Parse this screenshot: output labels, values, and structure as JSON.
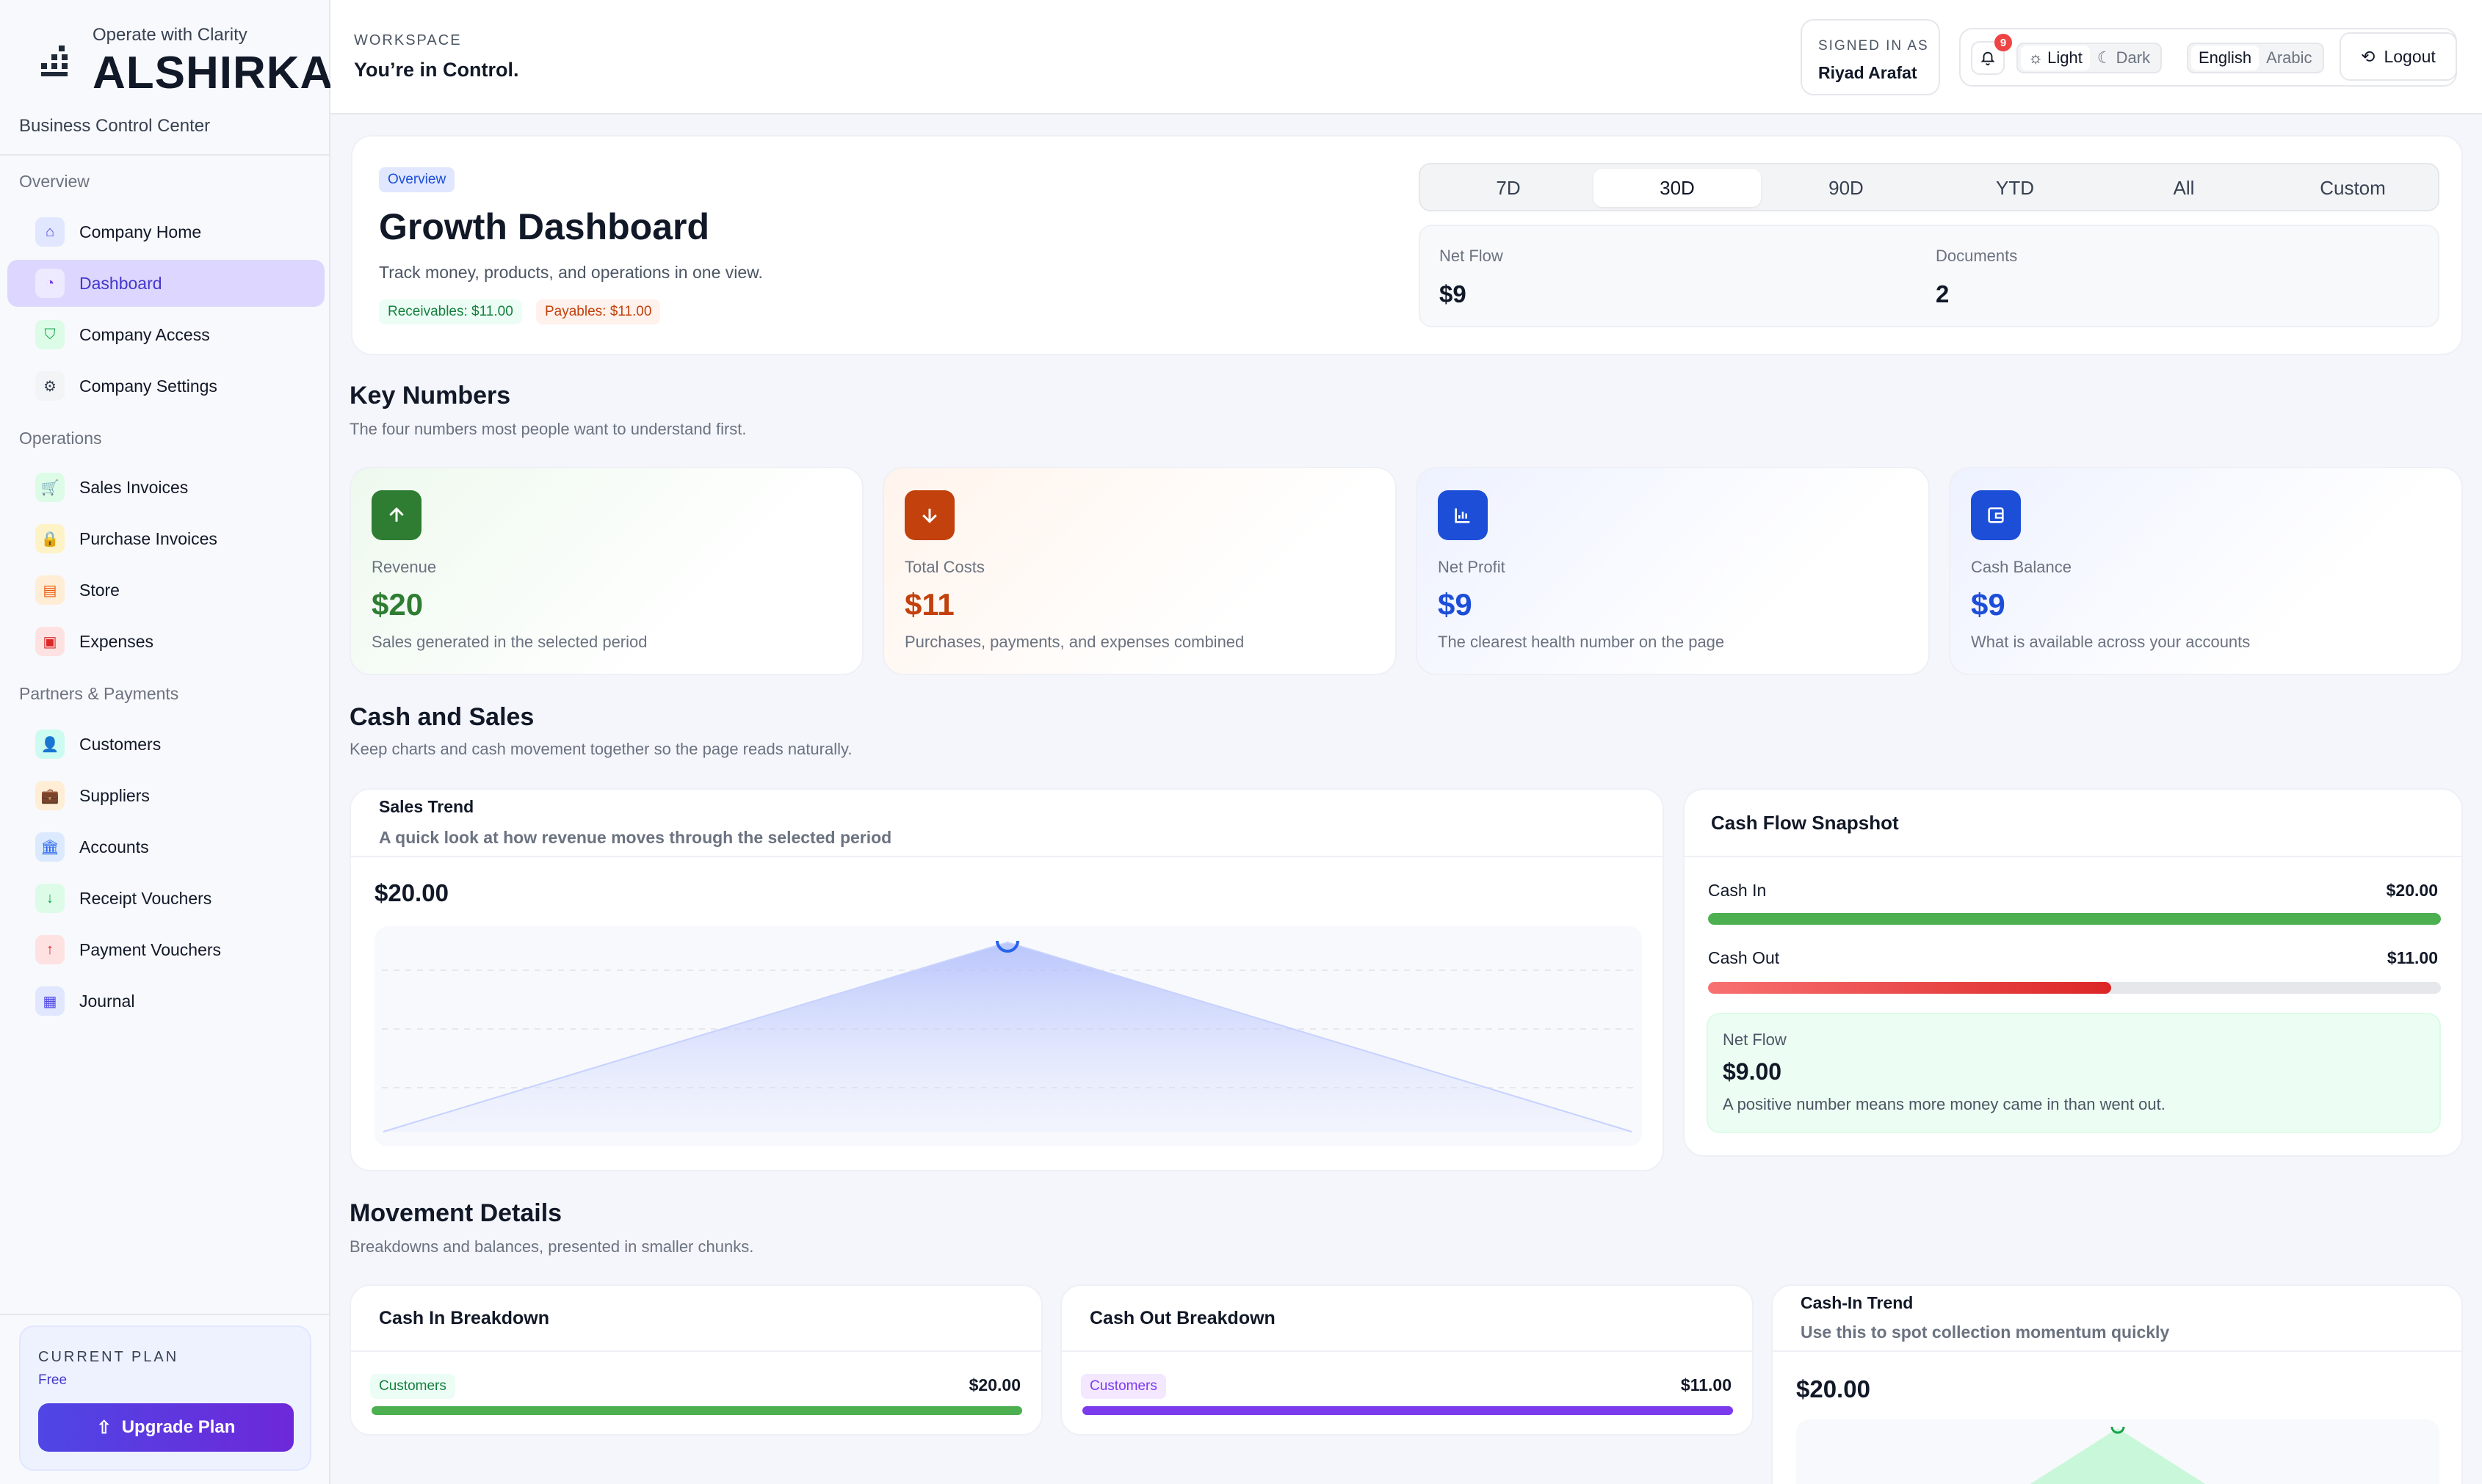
{
  "brand": {
    "tagline": "Operate with Clarity",
    "name": "ALSHIRKA",
    "subtitle": "Business Control Center"
  },
  "sidebar": {
    "groups": [
      {
        "label": "Overview",
        "items": [
          {
            "label": "Company Home",
            "icon": "home-icon"
          },
          {
            "label": "Dashboard",
            "icon": "dashboard-icon",
            "active": true
          },
          {
            "label": "Company Access",
            "icon": "shield-icon"
          },
          {
            "label": "Company Settings",
            "icon": "gear-icon"
          }
        ]
      },
      {
        "label": "Operations",
        "items": [
          {
            "label": "Sales Invoices",
            "icon": "cart-icon"
          },
          {
            "label": "Purchase Invoices",
            "icon": "lock-icon"
          },
          {
            "label": "Store",
            "icon": "store-icon"
          },
          {
            "label": "Expenses",
            "icon": "wallet-icon"
          }
        ]
      },
      {
        "label": "Partners & Payments",
        "items": [
          {
            "label": "Customers",
            "icon": "user-icon"
          },
          {
            "label": "Suppliers",
            "icon": "briefcase-icon"
          },
          {
            "label": "Accounts",
            "icon": "bank-icon"
          },
          {
            "label": "Receipt Vouchers",
            "icon": "arrow-down-icon"
          },
          {
            "label": "Payment Vouchers",
            "icon": "arrow-up-icon"
          },
          {
            "label": "Journal",
            "icon": "journal-icon"
          }
        ]
      }
    ],
    "plan": {
      "title": "CURRENT PLAN",
      "tier": "Free",
      "button": "Upgrade Plan"
    }
  },
  "topbar": {
    "workspace_label": "WORKSPACE",
    "workspace_title": "You’re in Control.",
    "signed_label": "SIGNED IN AS",
    "user": "Riyad Arafat",
    "notifications": "9",
    "theme": {
      "light": "Light",
      "dark": "Dark"
    },
    "lang": {
      "english": "English",
      "arabic": "Arabic"
    },
    "logout": "Logout"
  },
  "hero": {
    "badge": "Overview",
    "title": "Growth Dashboard",
    "subtitle": "Track money, products, and operations in one view.",
    "receivables": "Receivables: $11.00",
    "payables": "Payables: $11.00",
    "ranges": [
      "7D",
      "30D",
      "90D",
      "YTD",
      "All",
      "Custom"
    ],
    "selected_range": "30D",
    "stats": {
      "net_flow_label": "Net Flow",
      "net_flow": "$9",
      "documents_label": "Documents",
      "documents": "2"
    }
  },
  "key_numbers": {
    "title": "Key Numbers",
    "subtitle": "The four numbers most people want to understand first.",
    "cards": [
      {
        "label": "Revenue",
        "value": "$20",
        "note": "Sales generated in the selected period",
        "color": "#2e7d32"
      },
      {
        "label": "Total Costs",
        "value": "$11",
        "note": "Purchases, payments, and expenses combined",
        "color": "#c2410c"
      },
      {
        "label": "Net Profit",
        "value": "$9",
        "note": "The clearest health number on the page",
        "color": "#1d4ed8"
      },
      {
        "label": "Cash Balance",
        "value": "$9",
        "note": "What is available across your accounts",
        "color": "#1d4ed8"
      }
    ]
  },
  "cash_sales": {
    "title": "Cash and Sales",
    "subtitle": "Keep charts and cash movement together so the page reads naturally.",
    "trend": {
      "title": "Sales Trend",
      "subtitle": "A quick look at how revenue moves through the selected period",
      "value": "$20.00"
    },
    "snapshot": {
      "title": "Cash Flow Snapshot",
      "cash_in_label": "Cash In",
      "cash_in": "$20.00",
      "cash_in_fraction": 1.0,
      "cash_out_label": "Cash Out",
      "cash_out": "$11.00",
      "cash_out_fraction": 0.55,
      "net_label": "Net Flow",
      "net_value": "$9.00",
      "net_note": "A positive number means more money came in than went out."
    }
  },
  "movement": {
    "title": "Movement Details",
    "subtitle": "Breakdowns and balances, presented in smaller chunks.",
    "cash_in": {
      "title": "Cash In Breakdown",
      "tag": "Customers",
      "value": "$20.00"
    },
    "cash_out": {
      "title": "Cash Out Breakdown",
      "tag": "Customers",
      "value": "$11.00"
    },
    "trend": {
      "title": "Cash-In Trend",
      "subtitle": "Use this to spot collection momentum quickly",
      "value": "$20.00"
    }
  },
  "colors": {
    "accent": "#4f46e5",
    "green": "#4caf50",
    "red": "#dc2626",
    "purple": "#7c3aed"
  }
}
